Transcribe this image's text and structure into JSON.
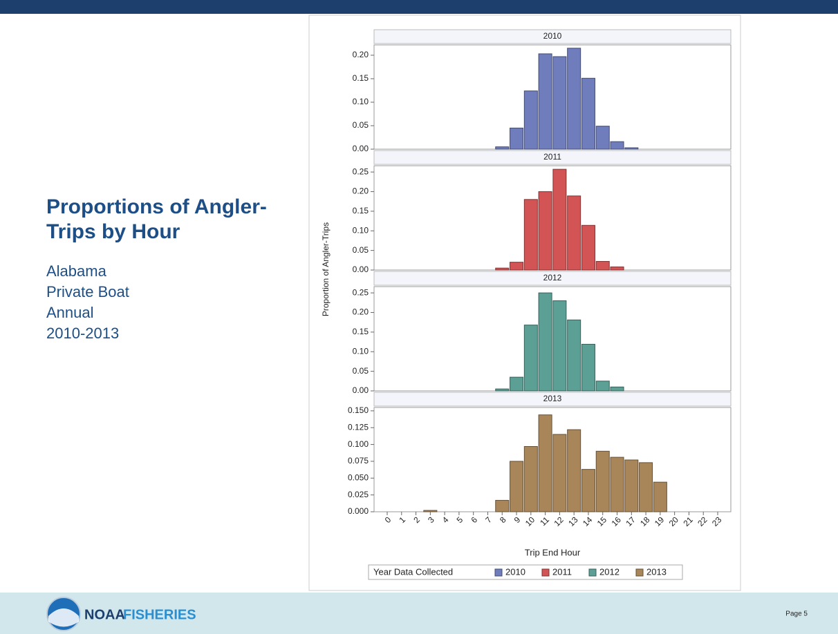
{
  "slide": {
    "title": "Proportions of Angler-Trips by Hour",
    "subtitle_lines": [
      "Alabama",
      "Private Boat",
      "Annual",
      "2010-2013"
    ]
  },
  "footer": {
    "logo_word1": "NOAA",
    "logo_word2": "FISHERIES",
    "page": "Page 5"
  },
  "chart_data": {
    "type": "bar",
    "y_label": "Proportion of Angler-Trips",
    "x_label": "Trip End Hour",
    "legend_title": "Year Data Collected",
    "categories": [
      0,
      1,
      2,
      3,
      4,
      5,
      6,
      7,
      8,
      9,
      10,
      11,
      12,
      13,
      14,
      15,
      16,
      17,
      18,
      19,
      20,
      21,
      22,
      23
    ],
    "series": [
      {
        "name": "2010",
        "color": "#6f7dbd",
        "ylim": [
          0,
          0.222
        ],
        "yticks": [
          {
            "value": 0,
            "label": "0.00"
          },
          {
            "value": 0.05,
            "label": "0.05"
          },
          {
            "value": 0.1,
            "label": "0.10"
          },
          {
            "value": 0.15,
            "label": "0.15"
          },
          {
            "value": 0.2,
            "label": "0.20"
          }
        ],
        "values": [
          0,
          0,
          0,
          0,
          0,
          0,
          0,
          0,
          0.005,
          0.045,
          0.124,
          0.203,
          0.197,
          0.215,
          0.151,
          0.049,
          0.016,
          0.003,
          0,
          0,
          0,
          0,
          0,
          0
        ]
      },
      {
        "name": "2011",
        "color": "#d35454",
        "ylim": [
          0,
          0.266
        ],
        "yticks": [
          {
            "value": 0,
            "label": "0.00"
          },
          {
            "value": 0.05,
            "label": "0.05"
          },
          {
            "value": 0.1,
            "label": "0.10"
          },
          {
            "value": 0.15,
            "label": "0.15"
          },
          {
            "value": 0.2,
            "label": "0.20"
          },
          {
            "value": 0.25,
            "label": "0.25"
          }
        ],
        "values": [
          0,
          0,
          0,
          0,
          0,
          0,
          0,
          0,
          0.005,
          0.02,
          0.18,
          0.2,
          0.257,
          0.189,
          0.114,
          0.022,
          0.008,
          0,
          0,
          0,
          0,
          0,
          0,
          0
        ]
      },
      {
        "name": "2012",
        "color": "#5b9f95",
        "ylim": [
          0,
          0.266
        ],
        "yticks": [
          {
            "value": 0,
            "label": "0.00"
          },
          {
            "value": 0.05,
            "label": "0.05"
          },
          {
            "value": 0.1,
            "label": "0.10"
          },
          {
            "value": 0.15,
            "label": "0.15"
          },
          {
            "value": 0.2,
            "label": "0.20"
          },
          {
            "value": 0.25,
            "label": "0.25"
          }
        ],
        "values": [
          0,
          0,
          0,
          0,
          0,
          0,
          0,
          0,
          0.005,
          0.035,
          0.168,
          0.25,
          0.23,
          0.181,
          0.119,
          0.025,
          0.01,
          0,
          0,
          0,
          0,
          0,
          0,
          0
        ]
      },
      {
        "name": "2013",
        "color": "#a8865a",
        "ylim": [
          0,
          0.155
        ],
        "yticks": [
          {
            "value": 0,
            "label": "0.000"
          },
          {
            "value": 0.025,
            "label": "0.025"
          },
          {
            "value": 0.05,
            "label": "0.050"
          },
          {
            "value": 0.075,
            "label": "0.075"
          },
          {
            "value": 0.1,
            "label": "0.100"
          },
          {
            "value": 0.125,
            "label": "0.125"
          },
          {
            "value": 0.15,
            "label": "0.150"
          }
        ],
        "values": [
          0,
          0,
          0,
          0.002,
          0,
          0,
          0,
          0,
          0.017,
          0.075,
          0.097,
          0.144,
          0.115,
          0.122,
          0.063,
          0.09,
          0.081,
          0.077,
          0.073,
          0.044,
          0,
          0,
          0,
          0
        ]
      }
    ]
  }
}
